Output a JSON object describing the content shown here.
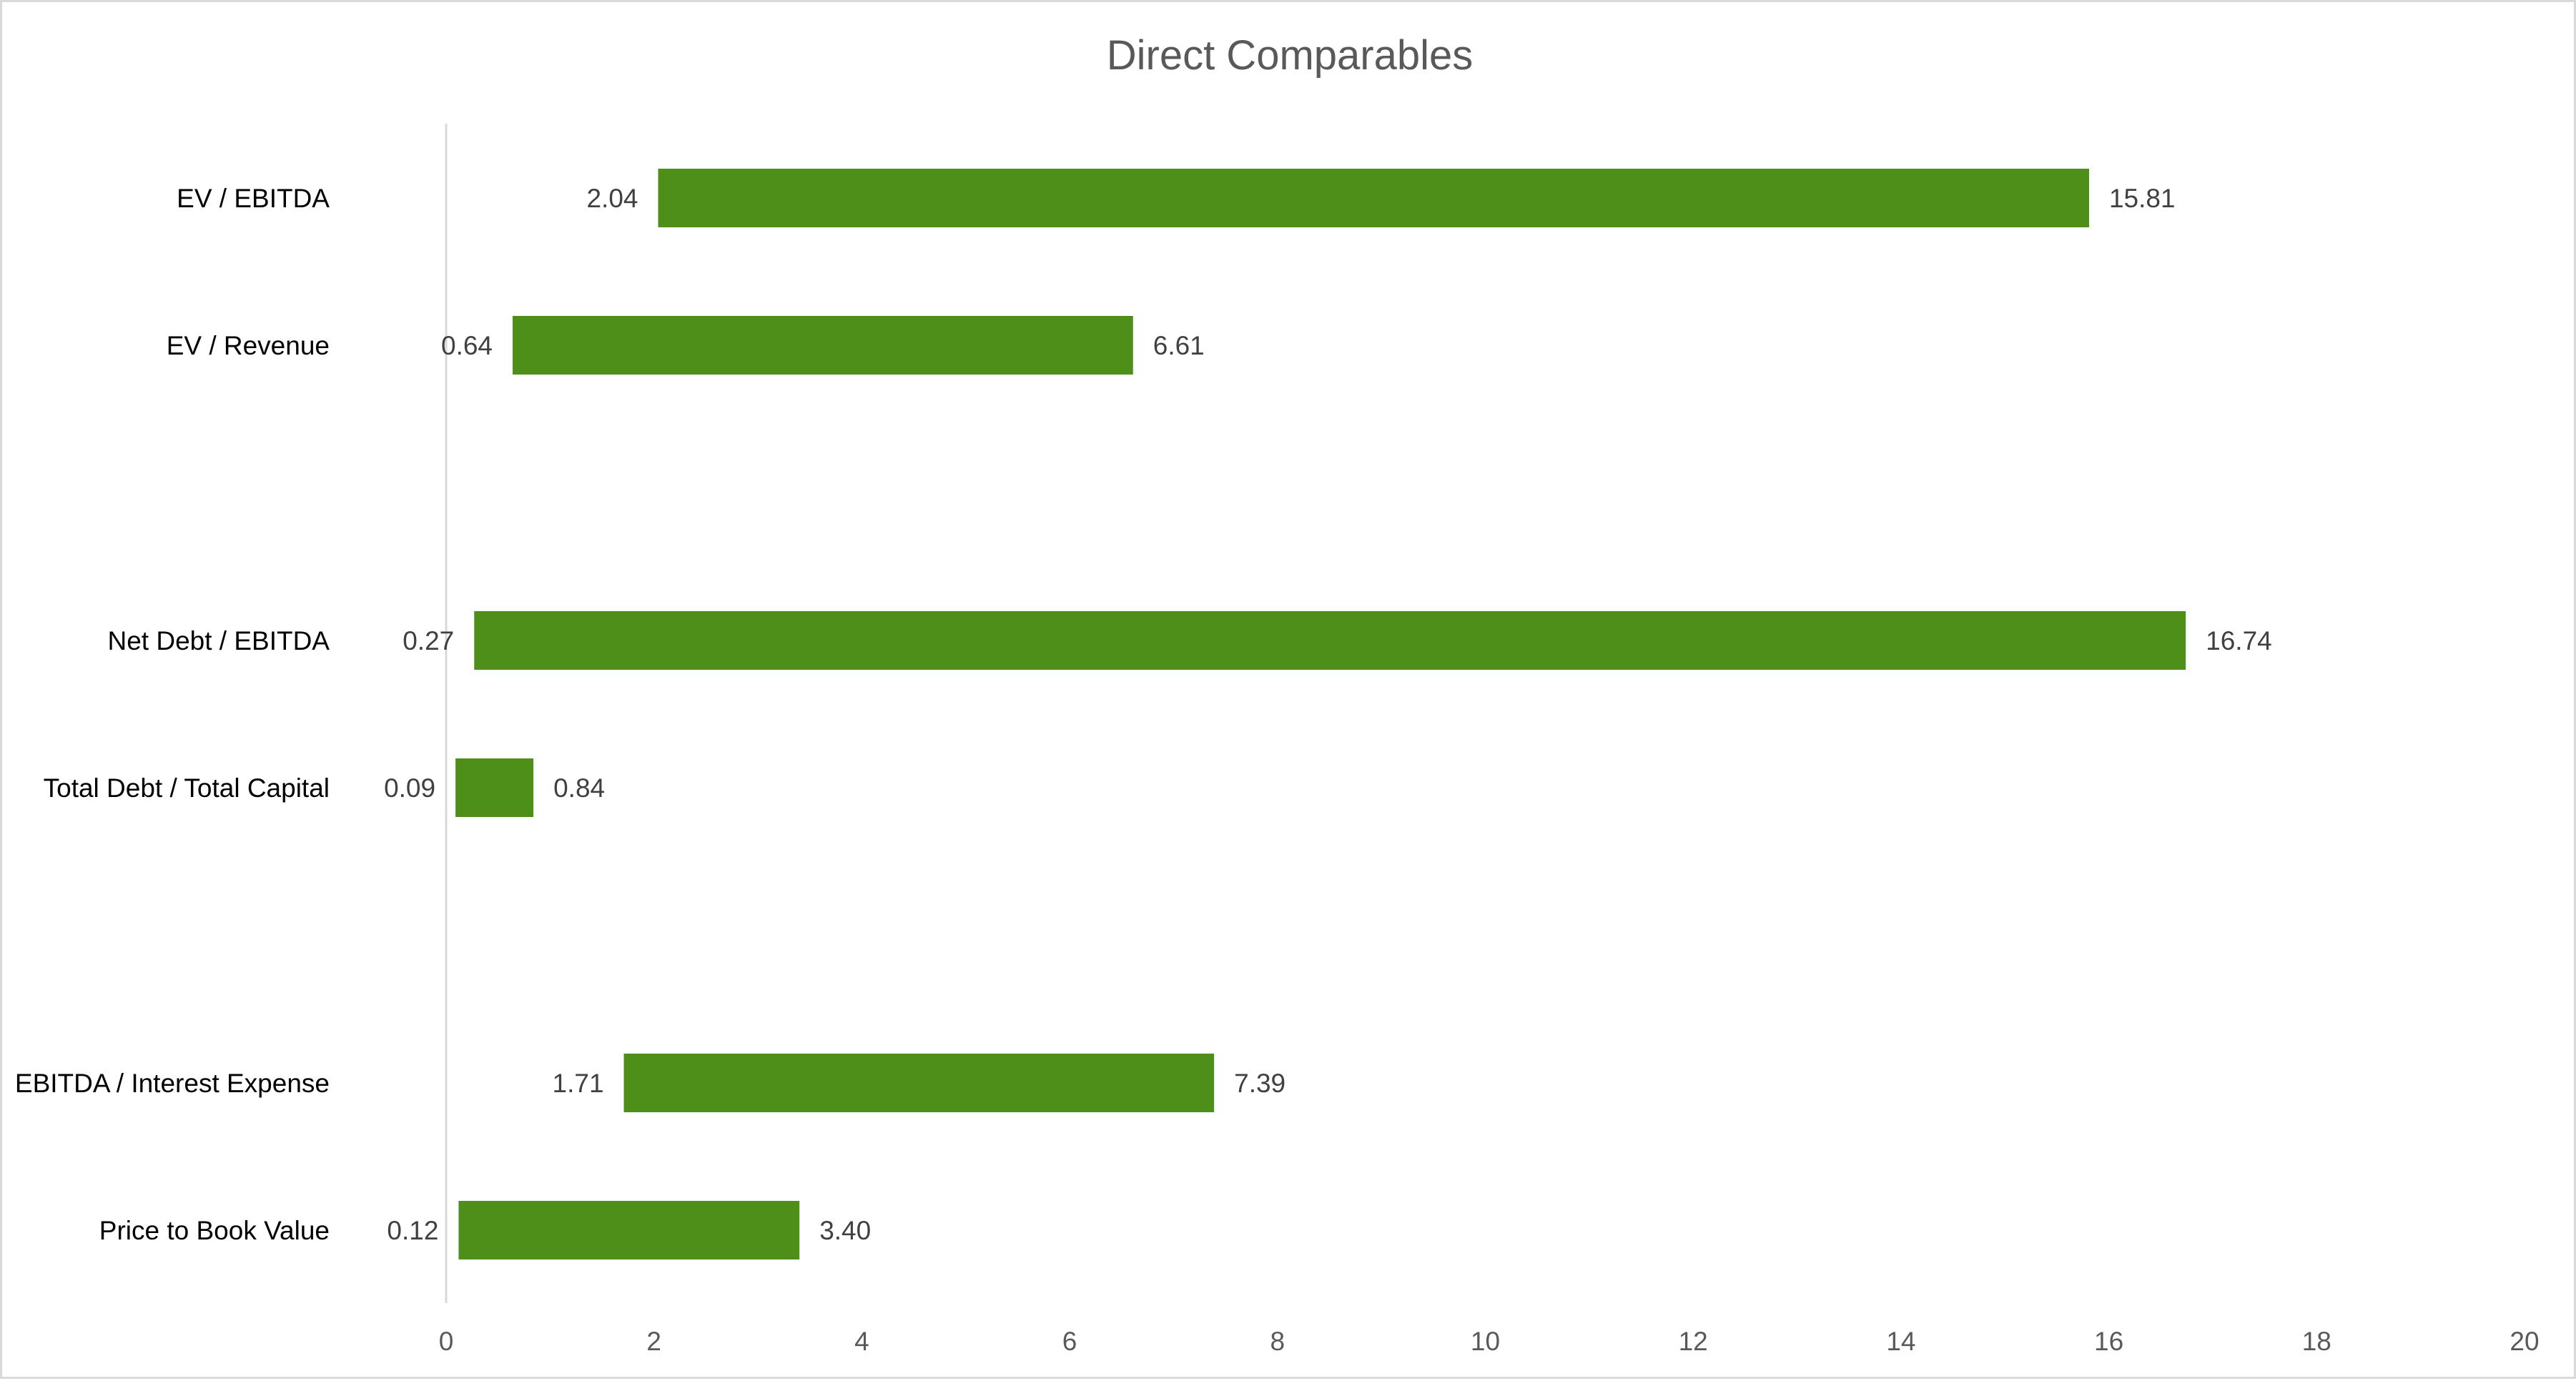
{
  "chart_data": {
    "type": "bar",
    "orientation": "horizontal",
    "floating": true,
    "title": "Direct Comparables",
    "xlabel": "",
    "ylabel": "",
    "xlim": [
      0,
      20
    ],
    "x_ticks": [
      "0",
      "2",
      "4",
      "6",
      "8",
      "10",
      "12",
      "14",
      "16",
      "18",
      "20"
    ],
    "grid": false,
    "legend": "none",
    "colors": {
      "bar": "#4e8f1a",
      "axis": "#d9d9d9",
      "title": "#595959"
    },
    "groups": [
      [
        {
          "category": "EV / EBITDA",
          "low": 2.04,
          "high": 15.81,
          "low_label": "2.04",
          "high_label": "15.81"
        },
        {
          "category": "EV / Revenue",
          "low": 0.64,
          "high": 6.61,
          "low_label": "0.64",
          "high_label": "6.61"
        }
      ],
      [
        {
          "category": "Net Debt / EBITDA",
          "low": 0.27,
          "high": 16.74,
          "low_label": "0.27",
          "high_label": "16.74"
        },
        {
          "category": "Total Debt / Total Capital",
          "low": 0.09,
          "high": 0.84,
          "low_label": "0.09",
          "high_label": "0.84"
        }
      ],
      [
        {
          "category": "EBITDA / Interest Expense",
          "low": 1.71,
          "high": 7.39,
          "low_label": "1.71",
          "high_label": "7.39"
        },
        {
          "category": "Price to Book Value",
          "low": 0.12,
          "high": 3.4,
          "low_label": "0.12",
          "high_label": "3.40"
        }
      ]
    ]
  }
}
